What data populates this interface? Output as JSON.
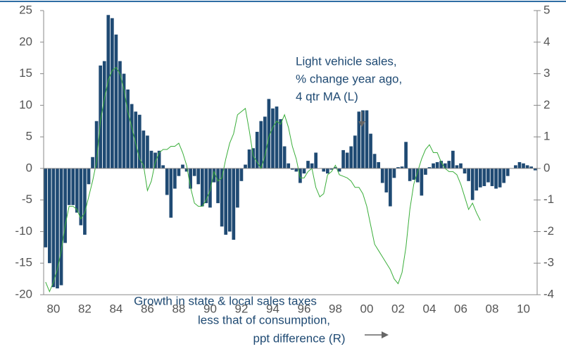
{
  "chart_data": {
    "type": "bar",
    "categories": [
      null,
      null,
      "80",
      null,
      null,
      null,
      null,
      null,
      null,
      null,
      "82",
      null,
      null,
      null,
      null,
      null,
      null,
      null,
      "84",
      null,
      null,
      null,
      null,
      null,
      null,
      null,
      "86",
      null,
      null,
      null,
      null,
      null,
      null,
      null,
      "88",
      null,
      null,
      null,
      null,
      null,
      null,
      null,
      "90",
      null,
      null,
      null,
      null,
      null,
      null,
      null,
      "92",
      null,
      null,
      null,
      null,
      null,
      null,
      null,
      "94",
      null,
      null,
      null,
      null,
      null,
      null,
      null,
      "96",
      null,
      null,
      null,
      null,
      null,
      null,
      null,
      "98",
      null,
      null,
      null,
      null,
      null,
      null,
      null,
      "00",
      null,
      null,
      null,
      null,
      null,
      null,
      null,
      "02",
      null,
      null,
      null,
      null,
      null,
      null,
      null,
      "04",
      null,
      null,
      null,
      null,
      null,
      null,
      null,
      "06",
      null,
      null,
      null,
      null,
      null,
      null,
      null,
      "08",
      null,
      null,
      null,
      null,
      null,
      null,
      null,
      "10",
      null,
      null,
      null
    ],
    "series": [
      {
        "type": "bar",
        "axis": "y",
        "color": "#1f4a73",
        "values": [
          -12.5,
          -15,
          -18.8,
          -19,
          -18.5,
          -11.8,
          -5.8,
          -5.8,
          -7,
          -9,
          -10.5,
          -2.5,
          1.8,
          7.5,
          16.3,
          17,
          24.3,
          23.8,
          21.2,
          17,
          15,
          12.5,
          10.2,
          9,
          8.5,
          6,
          5.2,
          2.8,
          2.5,
          2.8,
          0.5,
          -4.2,
          -7.8,
          -3.2,
          -1.2,
          0.6,
          -0.5,
          -3.2,
          -1.2,
          -2.5,
          -6,
          -5.5,
          -6.2,
          -2.2,
          -5.5,
          -9.2,
          -10.5,
          -10,
          -11.3,
          -6.2,
          -2,
          0.6,
          3,
          3.2,
          5.8,
          7.5,
          8.2,
          11,
          9.5,
          9.8,
          7.8,
          3.5,
          0.8,
          -0.2,
          -0.5,
          -2.3,
          -0.8,
          1.2,
          0.8,
          2.5,
          0,
          -0.5,
          -0.8,
          -0.2,
          0.2,
          -0.5,
          2.9,
          2.5,
          3.5,
          5.2,
          9,
          9.2,
          9.2,
          5.5,
          2.3,
          1,
          -2.3,
          -3.8,
          -6,
          -1.5,
          0.2,
          0.3,
          4.2,
          -2,
          -1.8,
          -2.2,
          -4.3,
          -1,
          0.2,
          0.8,
          1,
          1.2,
          0.8,
          1.2,
          2.8,
          0.5,
          0.8,
          -0.8,
          -2,
          -5,
          -3.5,
          -3,
          -2.8,
          -2.2,
          -2.8,
          -3.2,
          -3,
          -2.3,
          -1.2,
          0,
          0.5,
          1,
          0.8,
          0.5,
          0.3,
          -0.3
        ]
      },
      {
        "type": "line",
        "axis": "y2",
        "color": "#3aae3a",
        "values": [
          -3.6,
          -3.9,
          -3.6,
          -3.2,
          -2.6,
          -1.8,
          -1.2,
          -1.2,
          -1.3,
          -1.6,
          -1.4,
          -0.9,
          -0.4,
          0.2,
          1.5,
          2.2,
          2.8,
          3.1,
          3.2,
          3.0,
          2.5,
          1.8,
          1.3,
          0.8,
          0.3,
          0.1,
          -0.7,
          -0.4,
          0.2,
          0.5,
          0.6,
          0.6,
          0.7,
          0.7,
          0.8,
          0.5,
          0.1,
          -0.6,
          -1.1,
          -1.2,
          -1.2,
          -1.0,
          -0.7,
          -0.1,
          -0.4,
          -0.3,
          0.3,
          0.8,
          1.1,
          1.7,
          1.8,
          1.9,
          1.2,
          0.4,
          0.2,
          0.0,
          0.4,
          1.0,
          1.3,
          1.5,
          1.4,
          1.7,
          1.3,
          0.7,
          0.3,
          -0.3,
          -0.3,
          -0.1,
          0.0,
          -0.6,
          -0.9,
          -0.8,
          -0.2,
          -0.1,
          0.1,
          -0.2,
          -0.25,
          -0.3,
          -0.4,
          -0.6,
          -0.6,
          -0.8,
          -1.2,
          -1.8,
          -2.4,
          -2.6,
          -2.8,
          -3.0,
          -3.2,
          -3.5,
          -3.65,
          -3.3,
          -2.5,
          -1.3,
          -0.5,
          -0.1,
          0.3,
          0.6,
          0.75,
          0.5,
          0.5,
          0.2,
          0.0,
          -0.1,
          -0.1,
          -0.2,
          -0.5,
          -0.9,
          -1.3,
          -1.1,
          -1.4,
          -1.65,
          null,
          null,
          null,
          null,
          null,
          null,
          null,
          null,
          null,
          null,
          null,
          null,
          null,
          null
        ]
      }
    ],
    "ylim": [
      -20,
      25
    ],
    "yticks": [
      -20,
      -15,
      -10,
      -5,
      0,
      5,
      10,
      15,
      20,
      25
    ],
    "y2lim": [
      -4,
      5
    ],
    "y2ticks": [
      -4,
      -3,
      -2,
      -1,
      0,
      1,
      2,
      3,
      4,
      5
    ],
    "annotations": [
      {
        "lines": [
          "Light vehicle sales,",
          "% change year ago,",
          "4 qtr MA (L)"
        ]
      },
      {
        "lines": [
          "Growth in state & local sales taxes",
          "less that of consumption,",
          "ppt difference (R)"
        ]
      }
    ]
  }
}
